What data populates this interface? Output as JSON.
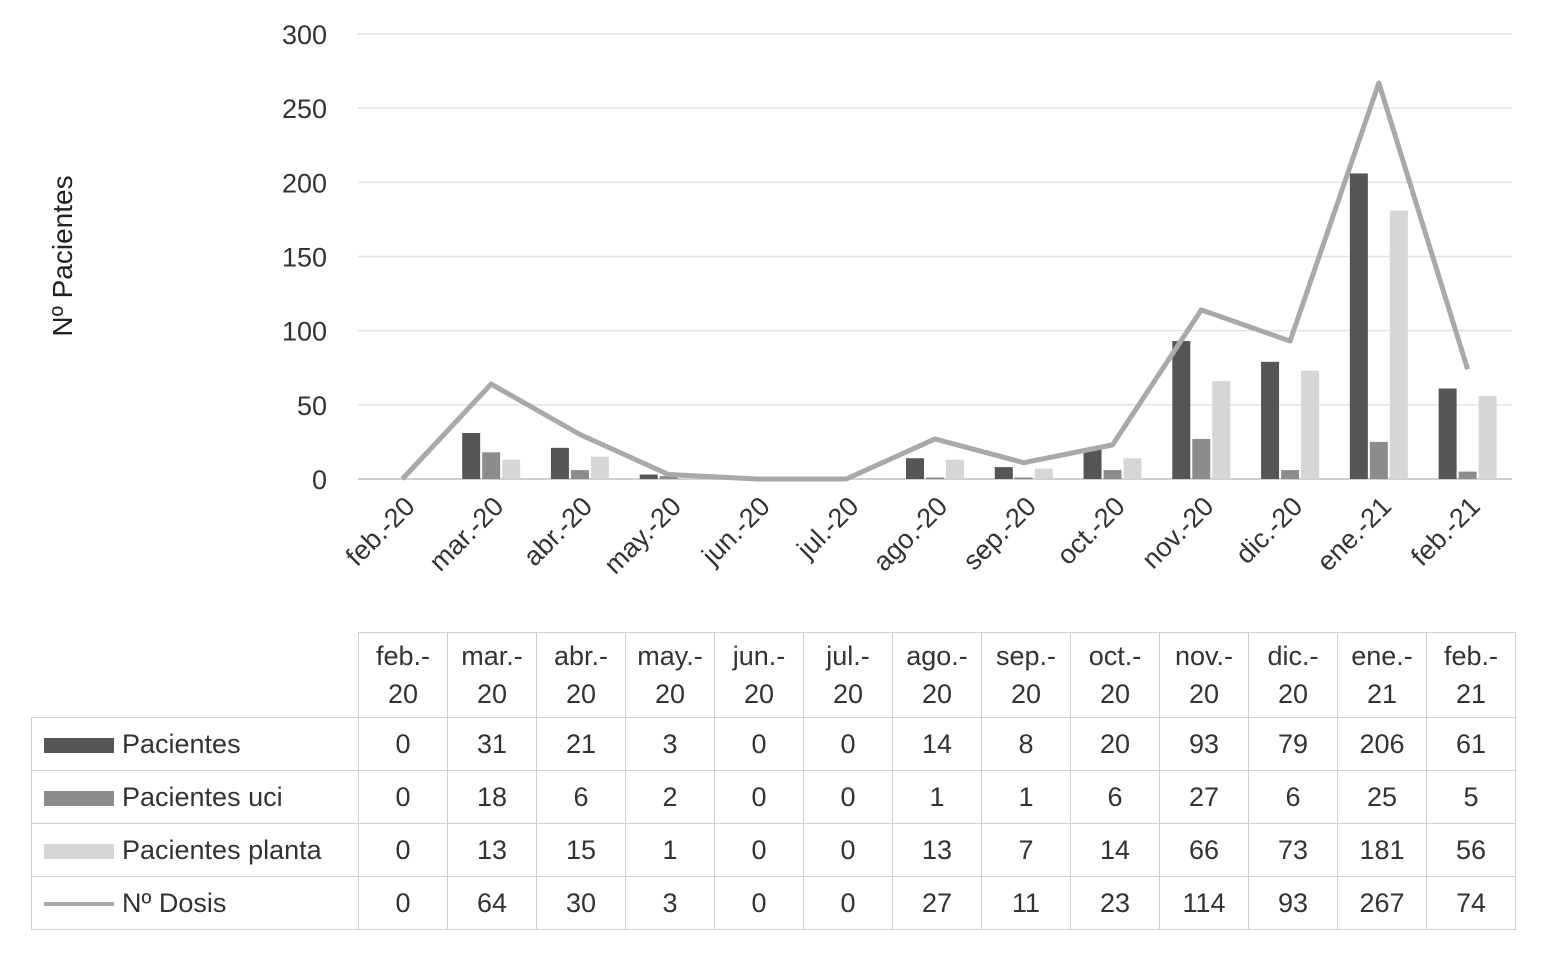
{
  "chart_data": {
    "type": "bar",
    "categories": [
      "feb.-20",
      "mar.-20",
      "abr.-20",
      "may.-20",
      "jun.-20",
      "jul.-20",
      "ago.-20",
      "sep.-20",
      "oct.-20",
      "nov.-20",
      "dic.-20",
      "ene.-21",
      "feb.-21"
    ],
    "table_headers": [
      [
        "feb.-",
        "20"
      ],
      [
        "mar.-",
        "20"
      ],
      [
        "abr.-",
        "20"
      ],
      [
        "may.-",
        "20"
      ],
      [
        "jun.-",
        "20"
      ],
      [
        "jul.-",
        "20"
      ],
      [
        "ago.-",
        "20"
      ],
      [
        "sep.-",
        "20"
      ],
      [
        "oct.-",
        "20"
      ],
      [
        "nov.-",
        "20"
      ],
      [
        "dic.-",
        "20"
      ],
      [
        "ene.-",
        "21"
      ],
      [
        "feb.-",
        "21"
      ]
    ],
    "series": [
      {
        "name": "Pacientes",
        "type": "bar",
        "color": "#555555",
        "values": [
          0,
          31,
          21,
          3,
          0,
          0,
          14,
          8,
          20,
          93,
          79,
          206,
          61
        ]
      },
      {
        "name": "Pacientes uci",
        "type": "bar",
        "color": "#8c8c8c",
        "values": [
          0,
          18,
          6,
          2,
          0,
          0,
          1,
          1,
          6,
          27,
          6,
          25,
          5
        ]
      },
      {
        "name": "Pacientes planta",
        "type": "bar",
        "color": "#d6d6d6",
        "values": [
          0,
          13,
          15,
          1,
          0,
          0,
          13,
          7,
          14,
          66,
          73,
          181,
          56
        ]
      },
      {
        "name": "Nº Dosis",
        "type": "line",
        "color": "#a9a9a9",
        "values": [
          0,
          64,
          30,
          3,
          0,
          0,
          27,
          11,
          23,
          114,
          93,
          267,
          74
        ]
      }
    ],
    "ylabel": "Nº Pacientes",
    "xlabel": "",
    "ylim": [
      0,
      300
    ],
    "yticks": [
      0,
      50,
      100,
      150,
      200,
      250,
      300
    ],
    "grid": true,
    "legend": "data-table-below"
  }
}
